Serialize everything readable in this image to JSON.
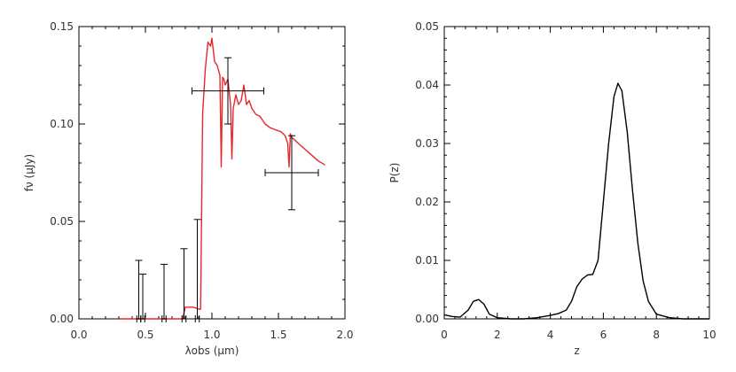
{
  "chart_data": [
    {
      "type": "line",
      "xlabel": "λobs (μm)",
      "ylabel": "fν (μJy)",
      "xlim": [
        0.0,
        2.0
      ],
      "ylim": [
        0.0,
        0.15
      ],
      "xticks": [
        "0.0",
        "0.5",
        "1.0",
        "1.5",
        "2.0"
      ],
      "yticks": [
        "0.00",
        "0.05",
        "0.10",
        "0.15"
      ],
      "series": [
        {
          "line_color": "#e8262a",
          "x": [
            0.3,
            0.6,
            0.78,
            0.8,
            0.86,
            0.9,
            0.915,
            0.93,
            0.95,
            0.97,
            0.99,
            1.0,
            1.02,
            1.04,
            1.06,
            1.07,
            1.08,
            1.09,
            1.1,
            1.12,
            1.14,
            1.15,
            1.16,
            1.18,
            1.2,
            1.22,
            1.24,
            1.26,
            1.28,
            1.3,
            1.33,
            1.36,
            1.4,
            1.44,
            1.48,
            1.52,
            1.55,
            1.57,
            1.58,
            1.59,
            1.6,
            1.62,
            1.65,
            1.7,
            1.75,
            1.8,
            1.85
          ],
          "y": [
            0.0,
            0.0,
            0.0,
            0.006,
            0.006,
            0.005,
            0.005,
            0.105,
            0.128,
            0.142,
            0.14,
            0.144,
            0.132,
            0.13,
            0.125,
            0.078,
            0.124,
            0.123,
            0.12,
            0.123,
            0.11,
            0.082,
            0.108,
            0.115,
            0.11,
            0.112,
            0.12,
            0.11,
            0.112,
            0.108,
            0.105,
            0.104,
            0.1,
            0.098,
            0.097,
            0.096,
            0.094,
            0.09,
            0.078,
            0.095,
            0.093,
            0.092,
            0.09,
            0.087,
            0.084,
            0.081,
            0.079
          ]
        }
      ],
      "errorbars": [
        {
          "x": 0.45,
          "y": 0.0,
          "yerr_low": 0.0,
          "yerr_high": 0.03,
          "xerr": 0.015
        },
        {
          "x": 0.48,
          "y": 0.0,
          "yerr_low": 0.0,
          "yerr_high": 0.023,
          "xerr": 0.015
        },
        {
          "x": 0.64,
          "y": 0.0,
          "yerr_low": 0.0,
          "yerr_high": 0.028,
          "xerr": 0.015
        },
        {
          "x": 0.79,
          "y": 0.0,
          "yerr_low": 0.0,
          "yerr_high": 0.036,
          "xerr": 0.015
        },
        {
          "x": 0.89,
          "y": 0.0,
          "yerr_low": 0.0,
          "yerr_high": 0.051,
          "xerr": 0.015
        },
        {
          "x": 1.12,
          "y": 0.117,
          "yerr_low": 0.017,
          "yerr_high": 0.017,
          "xerr": 0.27
        },
        {
          "x": 1.6,
          "y": 0.075,
          "yerr_low": 0.019,
          "yerr_high": 0.019,
          "xerr": 0.2
        }
      ]
    },
    {
      "type": "line",
      "xlabel": "z",
      "ylabel": "P(z)",
      "xlim": [
        0,
        10
      ],
      "ylim": [
        0.0,
        0.05
      ],
      "xticks": [
        "0",
        "2",
        "4",
        "6",
        "8",
        "10"
      ],
      "yticks": [
        "0.00",
        "0.01",
        "0.02",
        "0.03",
        "0.04",
        "0.05"
      ],
      "series": [
        {
          "line_color": "#000000",
          "x": [
            0.0,
            0.3,
            0.6,
            0.9,
            1.1,
            1.3,
            1.5,
            1.7,
            2.0,
            2.5,
            3.0,
            3.5,
            4.0,
            4.3,
            4.6,
            4.8,
            5.0,
            5.2,
            5.4,
            5.6,
            5.8,
            6.0,
            6.2,
            6.4,
            6.55,
            6.7,
            6.9,
            7.1,
            7.3,
            7.5,
            7.7,
            8.0,
            8.5,
            9.0,
            10.0
          ],
          "y": [
            0.0007,
            0.0004,
            0.0003,
            0.0015,
            0.003,
            0.0033,
            0.0025,
            0.0008,
            0.0002,
            0.0,
            0.0,
            0.0002,
            0.0006,
            0.0009,
            0.0015,
            0.003,
            0.0055,
            0.0068,
            0.0075,
            0.0076,
            0.01,
            0.02,
            0.03,
            0.038,
            0.0403,
            0.039,
            0.032,
            0.022,
            0.013,
            0.0065,
            0.003,
            0.0008,
            0.0002,
            0.0,
            0.0
          ]
        }
      ]
    }
  ]
}
